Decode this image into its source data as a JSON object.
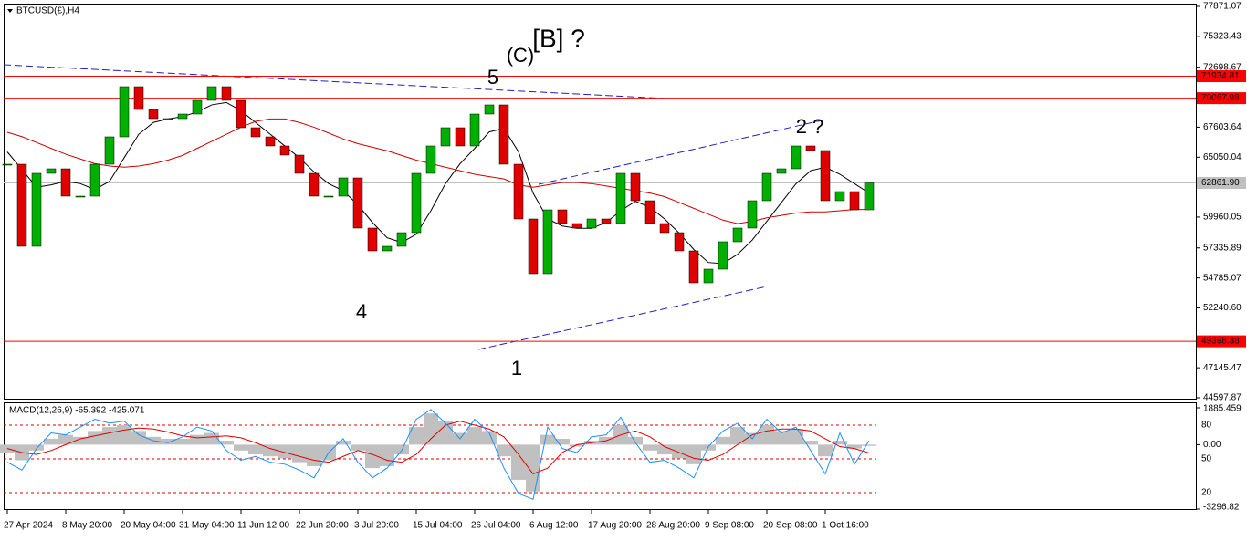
{
  "chart_data": [
    {
      "type": "candlestick",
      "title": "BTCUSD(£),H4",
      "categories": [
        "27 Apr 2024",
        null,
        null,
        null,
        "8 May 20:00",
        null,
        null,
        null,
        "20 May 04:00",
        null,
        null,
        null,
        "31 May 04:00",
        null,
        null,
        null,
        "11 Jun 12:00",
        null,
        null,
        null,
        "22 Jun 20:00",
        null,
        null,
        null,
        "3 Jul 20:00",
        null,
        null,
        null,
        "15 Jul 04:00",
        null,
        null,
        null,
        "26 Jul 04:00",
        null,
        null,
        null,
        "6 Aug 12:00",
        null,
        null,
        null,
        "17 Aug 20:00",
        null,
        null,
        null,
        "28 Aug 20:00",
        null,
        null,
        null,
        "9 Sep 08:00",
        null,
        null,
        null,
        "20 Sep 08:00",
        null,
        null,
        null,
        "1 Oct 16:00",
        null,
        null,
        null
      ],
      "close": [
        64453,
        57473,
        63678,
        64065,
        61738,
        61738,
        64453,
        66780,
        71046,
        69107,
        68331,
        68331,
        68719,
        69883,
        71046,
        69883,
        67556,
        66780,
        66005,
        65229,
        63678,
        61738,
        61738,
        63290,
        59025,
        57085,
        57473,
        58636,
        63678,
        66005,
        67556,
        66005,
        68719,
        69495,
        64453,
        59800,
        55146,
        60575,
        59412,
        59025,
        59800,
        59412,
        63678,
        61351,
        59412,
        58636,
        57085,
        54370,
        55534,
        57861,
        59025,
        61351,
        63678,
        64065,
        66005,
        65617,
        61351,
        62127,
        60575,
        62861.9
      ],
      "up_color": "#00b000",
      "down_color": "#e00000",
      "series": [
        {
          "color": "#000000",
          "values": [
            65500,
            64000,
            62500,
            62700,
            63000,
            62800,
            62300,
            63000,
            65000,
            67000,
            68000,
            68300,
            68500,
            68900,
            69500,
            69700,
            69000,
            68000,
            67000,
            66000,
            65000,
            63800,
            62800,
            62200,
            61000,
            59500,
            58200,
            57800,
            58500,
            60500,
            62800,
            64500,
            65800,
            67200,
            67500,
            65500,
            62000,
            59800,
            59200,
            59000,
            59000,
            59500,
            60500,
            61300,
            60800,
            59800,
            58600,
            57200,
            56100,
            56000,
            56800,
            58000,
            59600,
            61200,
            62800,
            63900,
            64200,
            63600,
            62800,
            62000
          ]
        },
        {
          "color": "#d00000",
          "values": [
            67170,
            66800,
            66300,
            65800,
            65300,
            64900,
            64500,
            64300,
            64200,
            64300,
            64500,
            64800,
            65200,
            65800,
            66400,
            67000,
            67600,
            68100,
            68300,
            68300,
            68000,
            67600,
            67100,
            66600,
            66200,
            65900,
            65600,
            65200,
            64800,
            64500,
            64200,
            63900,
            63600,
            63400,
            63200,
            62700,
            62500,
            62700,
            62900,
            62900,
            62800,
            62600,
            62400,
            62200,
            62000,
            61700,
            61200,
            60700,
            60200,
            59700,
            59400,
            59600,
            59900,
            60100,
            60300,
            60400,
            60400,
            60500,
            60600,
            60600
          ]
        }
      ],
      "ylim": [
        44597.87,
        77871.07
      ],
      "yticks": [
        77871.07,
        75323.43,
        72698.67,
        67603.64,
        65050.04,
        59960.05,
        57335.89,
        54785.07,
        {
          "value": 52240.6,
          "label": "52240.60"
        },
        47145.47,
        44597.87
      ],
      "levels": [
        {
          "value": 71934.81,
          "color": "#ff0000"
        },
        {
          "value": 70067.98,
          "color": "#ff0000"
        },
        {
          "value": 62861.9,
          "label": "62861.90",
          "color": "#c0c0c0"
        },
        {
          "value": 49398.38,
          "color": "#ff0000"
        }
      ],
      "annotations": [
        {
          "text": "5",
          "color": "#2020e0"
        },
        {
          "text": "(C)",
          "color": "#ff0000"
        },
        {
          "text": "[B] ?",
          "color": "#000000"
        },
        {
          "text": "4",
          "color": "#2020e0"
        },
        {
          "text": "1",
          "color": "#2020e0"
        },
        {
          "text": "2 ?",
          "color": "#2020e0"
        }
      ]
    },
    {
      "type": "macd",
      "title": "MACD(12,26,9) -65.392 -425.071",
      "histogram": {
        "color": "#c0c0c0",
        "values": [
          -400,
          -800,
          -300,
          300,
          500,
          400,
          700,
          900,
          1000,
          700,
          400,
          300,
          300,
          500,
          600,
          200,
          -300,
          -500,
          -600,
          -700,
          -900,
          -1100,
          -800,
          200,
          -300,
          -1200,
          -1100,
          -500,
          900,
          1600,
          1200,
          600,
          900,
          700,
          -600,
          -1800,
          -2400,
          500,
          300,
          -100,
          200,
          400,
          1000,
          400,
          -300,
          -500,
          -700,
          -1000,
          -300,
          400,
          900,
          600,
          1000,
          700,
          800,
          200,
          -600,
          200,
          -200,
          -65
        ]
      },
      "series": [
        {
          "color": "#e00000",
          "values": [
            -200,
            -400,
            -500,
            -300,
            0,
            300,
            450,
            600,
            750,
            850,
            800,
            650,
            450,
            350,
            400,
            450,
            350,
            100,
            -200,
            -400,
            -600,
            -800,
            -900,
            -600,
            -300,
            -500,
            -800,
            -900,
            -500,
            300,
            1000,
            1200,
            1000,
            800,
            400,
            -500,
            -1500,
            -1200,
            -400,
            0,
            100,
            200,
            500,
            700,
            400,
            -100,
            -400,
            -700,
            -800,
            -500,
            0,
            500,
            700,
            800,
            800,
            700,
            300,
            -100,
            -200,
            -425
          ]
        },
        {
          "color": "#1e90ff",
          "values": [
            -900,
            -1300,
            -200,
            600,
            500,
            900,
            1300,
            1100,
            1200,
            500,
            200,
            100,
            400,
            900,
            700,
            -300,
            -800,
            -600,
            -900,
            -1000,
            -1300,
            -1700,
            -400,
            300,
            -900,
            -1700,
            -1200,
            -300,
            1300,
            1800,
            1100,
            300,
            1300,
            600,
            -1200,
            -2500,
            -2800,
            900,
            -200,
            -400,
            400,
            500,
            1400,
            100,
            -900,
            -800,
            -1200,
            -1700,
            -100,
            700,
            1100,
            300,
            1300,
            600,
            900,
            -300,
            -1500,
            600,
            -1000,
            200
          ]
        }
      ],
      "ylim": [
        -3296.82,
        1885.459
      ],
      "yticks": [
        1885.459,
        {
          "value": 0,
          "label": "0.00"
        },
        -3296.82
      ],
      "level_labels": [
        "80",
        "50",
        "20"
      ]
    }
  ]
}
